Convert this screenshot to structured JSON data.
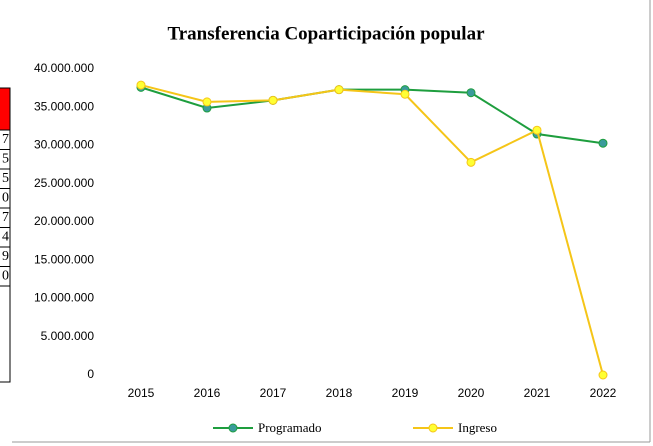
{
  "chart_data": {
    "type": "line",
    "title": "Transferencia Coparticipación popular",
    "categories": [
      "2015",
      "2016",
      "2017",
      "2018",
      "2019",
      "2020",
      "2021",
      "2022"
    ],
    "series": [
      {
        "name": "Programado",
        "color": "#1e9e3e",
        "marker_color": "#3a9b9b",
        "values": [
          37600000,
          34900000,
          35900000,
          37300000,
          37300000,
          36900000,
          31500000,
          30300000
        ]
      },
      {
        "name": "Ingreso",
        "color": "#f5c518",
        "marker_color": "#ffff33",
        "values": [
          37900000,
          35700000,
          35900000,
          37300000,
          36700000,
          27800000,
          32000000,
          0
        ]
      }
    ],
    "ylim": [
      0,
      40000000
    ],
    "yticks": [
      0,
      {
        "value": 5000000,
        "label": "5.000.000"
      },
      {
        "value": 10000000,
        "label": "10.000.000"
      },
      {
        "value": 15000000,
        "label": "15.000.000"
      },
      {
        "value": 20000000,
        "label": "20.000.000"
      },
      {
        "value": 25000000,
        "label": "25.000.000"
      },
      {
        "value": 30000000,
        "label": "30.000.000"
      },
      {
        "value": 35000000,
        "label": "35.000.000"
      },
      {
        "value": 40000000,
        "label": "40.000.000"
      }
    ],
    "grid": false,
    "legend": "bottom"
  },
  "table_fragment": {
    "cells": [
      "7",
      "5",
      "5",
      "0",
      "7",
      "4",
      "9",
      "0"
    ]
  }
}
